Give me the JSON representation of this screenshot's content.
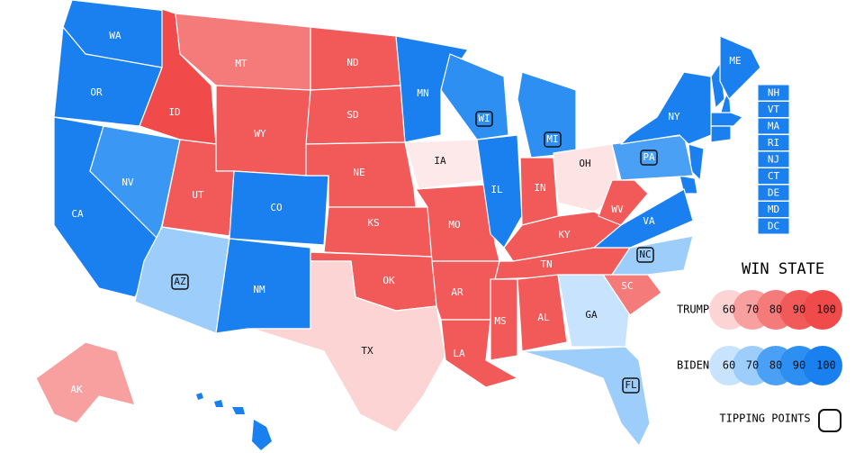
{
  "states": [
    {
      "label": "WA",
      "color": "#1a80f0",
      "tipping_point": false
    },
    {
      "label": "OR",
      "color": "#1a80f0",
      "tipping_point": false
    },
    {
      "label": "CA",
      "color": "#1a80f0",
      "tipping_point": false
    },
    {
      "label": "NV",
      "color": "#3a97f3",
      "tipping_point": false
    },
    {
      "label": "ID",
      "color": "#f04a4a",
      "tipping_point": false
    },
    {
      "label": "MT",
      "color": "#f57a7a",
      "tipping_point": false
    },
    {
      "label": "WY",
      "color": "#f25a5a",
      "tipping_point": false
    },
    {
      "label": "UT",
      "color": "#f25a5a",
      "tipping_point": false
    },
    {
      "label": "CO",
      "color": "#1a80f0",
      "tipping_point": false
    },
    {
      "label": "AZ",
      "color": "#9dcdfb",
      "tipping_point": true
    },
    {
      "label": "NM",
      "color": "#1a80f0",
      "tipping_point": false
    },
    {
      "label": "ND",
      "color": "#f25a5a",
      "tipping_point": false
    },
    {
      "label": "SD",
      "color": "#f25a5a",
      "tipping_point": false
    },
    {
      "label": "NE",
      "color": "#f25a5a",
      "tipping_point": false
    },
    {
      "label": "KS",
      "color": "#f25a5a",
      "tipping_point": false
    },
    {
      "label": "OK",
      "color": "#f25a5a",
      "tipping_point": false
    },
    {
      "label": "TX",
      "color": "#fcd4d4",
      "tipping_point": false
    },
    {
      "label": "MN",
      "color": "#1a80f0",
      "tipping_point": false
    },
    {
      "label": "IA",
      "color": "#fde9e9",
      "tipping_point": false
    },
    {
      "label": "MO",
      "color": "#f25a5a",
      "tipping_point": false
    },
    {
      "label": "AR",
      "color": "#f25a5a",
      "tipping_point": false
    },
    {
      "label": "LA",
      "color": "#f25a5a",
      "tipping_point": false
    },
    {
      "label": "WI",
      "color": "#2e8ff2",
      "tipping_point": true
    },
    {
      "label": "IL",
      "color": "#1a80f0",
      "tipping_point": false
    },
    {
      "label": "MI",
      "color": "#2e8ff2",
      "tipping_point": true
    },
    {
      "label": "IN",
      "color": "#f25a5a",
      "tipping_point": false
    },
    {
      "label": "OH",
      "color": "#fde3e3",
      "tipping_point": false
    },
    {
      "label": "KY",
      "color": "#f25a5a",
      "tipping_point": false
    },
    {
      "label": "TN",
      "color": "#f25a5a",
      "tipping_point": false
    },
    {
      "label": "MS",
      "color": "#f25a5a",
      "tipping_point": false
    },
    {
      "label": "AL",
      "color": "#f25a5a",
      "tipping_point": false
    },
    {
      "label": "GA",
      "color": "#c8e3fd",
      "tipping_point": false
    },
    {
      "label": "FL",
      "color": "#9dcdfb",
      "tipping_point": true
    },
    {
      "label": "SC",
      "color": "#f57a7a",
      "tipping_point": false
    },
    {
      "label": "NC",
      "color": "#9dcdfb",
      "tipping_point": true
    },
    {
      "label": "VA",
      "color": "#1a80f0",
      "tipping_point": false
    },
    {
      "label": "WV",
      "color": "#f25a5a",
      "tipping_point": false
    },
    {
      "label": "PA",
      "color": "#4aa0f5",
      "tipping_point": true
    },
    {
      "label": "NY",
      "color": "#1a80f0",
      "tipping_point": false
    },
    {
      "label": "ME",
      "color": "#1a80f0",
      "tipping_point": false
    },
    {
      "label": "AK",
      "color": "#f8a0a0",
      "tipping_point": false
    }
  ],
  "small_states": {
    "labels": [
      "NH",
      "VT",
      "MA",
      "RI",
      "NJ",
      "CT",
      "DE",
      "MD",
      "DC"
    ],
    "color": "#1a80f0"
  },
  "legend": {
    "title": "WIN STATE",
    "trump": {
      "label": "TRUMP",
      "levels": [
        60,
        70,
        80,
        90,
        100
      ],
      "colors": [
        "#fcd4d4",
        "#f8a0a0",
        "#f57a7a",
        "#f25a5a",
        "#f04a4a"
      ]
    },
    "biden": {
      "label": "BIDEN",
      "levels": [
        60,
        70,
        80,
        90,
        100
      ],
      "colors": [
        "#c8e3fd",
        "#9dcdfb",
        "#4aa0f5",
        "#2e8ff2",
        "#1a80f0"
      ]
    },
    "tipping_label": "TIPPING POINTS"
  }
}
